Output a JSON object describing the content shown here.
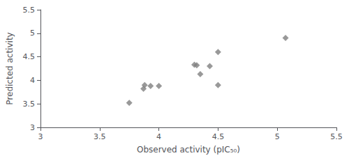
{
  "chart_data": {
    "type": "scatter",
    "x": [
      3.75,
      3.87,
      3.88,
      3.93,
      4.0,
      4.3,
      4.32,
      4.35,
      4.43,
      4.5,
      4.5,
      5.07
    ],
    "values": [
      3.52,
      3.82,
      3.9,
      3.88,
      3.88,
      4.33,
      4.32,
      4.13,
      4.3,
      4.6,
      3.9,
      4.9
    ],
    "xlabel": "Observed activity (pIC₅₀)",
    "ylabel": "Predicted activity",
    "xlim": [
      3.0,
      5.5
    ],
    "ylim": [
      3.0,
      5.5
    ],
    "xticks": [
      3.0,
      3.5,
      4.0,
      4.5,
      5.0,
      5.5
    ],
    "yticks": [
      3.0,
      3.5,
      4.0,
      4.5,
      5.0,
      5.5
    ],
    "color": "#808080",
    "marker": "diamond",
    "grid": false
  }
}
